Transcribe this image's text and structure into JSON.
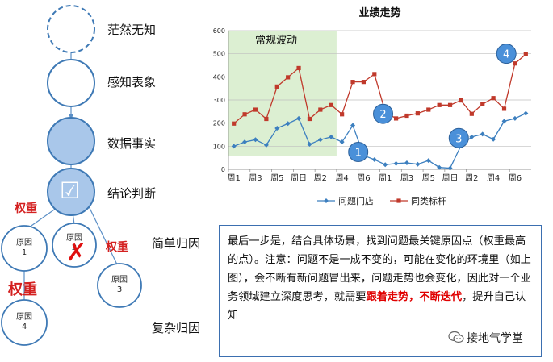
{
  "stages": [
    {
      "label": "茫然无知"
    },
    {
      "label": "感知表象"
    },
    {
      "label": "数据事实"
    },
    {
      "label": "结论判断"
    }
  ],
  "check_mark": "☑",
  "weights": {
    "w1": "权重",
    "w2": "权重",
    "w3": "权重"
  },
  "causes": [
    {
      "line1": "原因",
      "line2": "1"
    },
    {
      "line1": "原因",
      "line2": "2"
    },
    {
      "line1": "原因",
      "line2": "3"
    },
    {
      "line1": "原因",
      "line2": "4"
    }
  ],
  "reject_mark": "✗",
  "side_labels": {
    "simple": "简单归因",
    "complex": "复杂归因"
  },
  "textbox": {
    "part1": "最后一步是，结合具体场景，找到问题最关键原因点（权重最高的点）。注意：问题不是一成不变的，可能在变化的环境里（如上图），会不断有新问题冒出来，问题走势也会变化，因此对一个业务领域建立深度思考，就需要",
    "highlight": "跟着走势，不断迭代",
    "part2": "，提升自己认知"
  },
  "watermark": "接地气学堂",
  "colors": {
    "blue": "#3c7fbf",
    "red": "#c0392b",
    "shade": "#dcefd2",
    "node_fill": "#a9c7ea",
    "node_stroke": "#3e79b5"
  },
  "chart_data": {
    "type": "line",
    "title": "业绩走势",
    "ylim": [
      0,
      600
    ],
    "yticks": [
      0,
      100,
      200,
      300,
      400,
      500,
      600
    ],
    "x_tick_labels": [
      "周1",
      "周3",
      "周5",
      "周日",
      "周2",
      "周4",
      "周6",
      "周1",
      "周3",
      "周5",
      "周日",
      "周2",
      "周4",
      "周6"
    ],
    "shaded_region": {
      "label": "常规波动",
      "from_index": 0,
      "to_index": 10
    },
    "series": [
      {
        "name": "问题门店",
        "color": "#3c7fbf",
        "marker": "diamond",
        "values": [
          100,
          118,
          128,
          105,
          178,
          198,
          220,
          108,
          128,
          140,
          118,
          190,
          60,
          42,
          20,
          25,
          28,
          22,
          38,
          8,
          5,
          102,
          140,
          152,
          130,
          208,
          220,
          242
        ]
      },
      {
        "name": "同类标杆",
        "color": "#c0392b",
        "marker": "square",
        "values": [
          198,
          238,
          258,
          218,
          358,
          398,
          438,
          218,
          258,
          278,
          238,
          378,
          378,
          412,
          248,
          220,
          232,
          242,
          258,
          278,
          278,
          298,
          240,
          282,
          308,
          262,
          458,
          498
        ]
      }
    ],
    "callouts": [
      {
        "label": "1",
        "x_index": 11.5,
        "y": 75
      },
      {
        "label": "2",
        "x_index": 13.8,
        "y": 240
      },
      {
        "label": "3",
        "x_index": 20.8,
        "y": 135
      },
      {
        "label": "4",
        "x_index": 25.2,
        "y": 500
      }
    ]
  }
}
